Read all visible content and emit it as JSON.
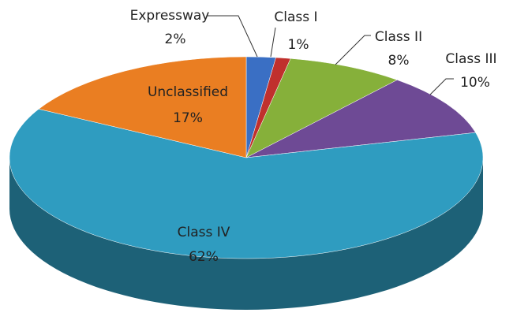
{
  "chart_data": {
    "type": "pie",
    "categories": [
      "Expressway",
      "Class I",
      "Class II",
      "Class III",
      "Class IV",
      "Unclassified"
    ],
    "values": [
      2,
      1,
      8,
      10,
      62,
      17
    ],
    "value_labels": [
      "2%",
      "1%",
      "8%",
      "10%",
      "62%",
      "17%"
    ],
    "colors": [
      "#3a6fc4",
      "#c0302d",
      "#86b03a",
      "#6e4a95",
      "#2f9cc0",
      "#ea7e22"
    ]
  }
}
